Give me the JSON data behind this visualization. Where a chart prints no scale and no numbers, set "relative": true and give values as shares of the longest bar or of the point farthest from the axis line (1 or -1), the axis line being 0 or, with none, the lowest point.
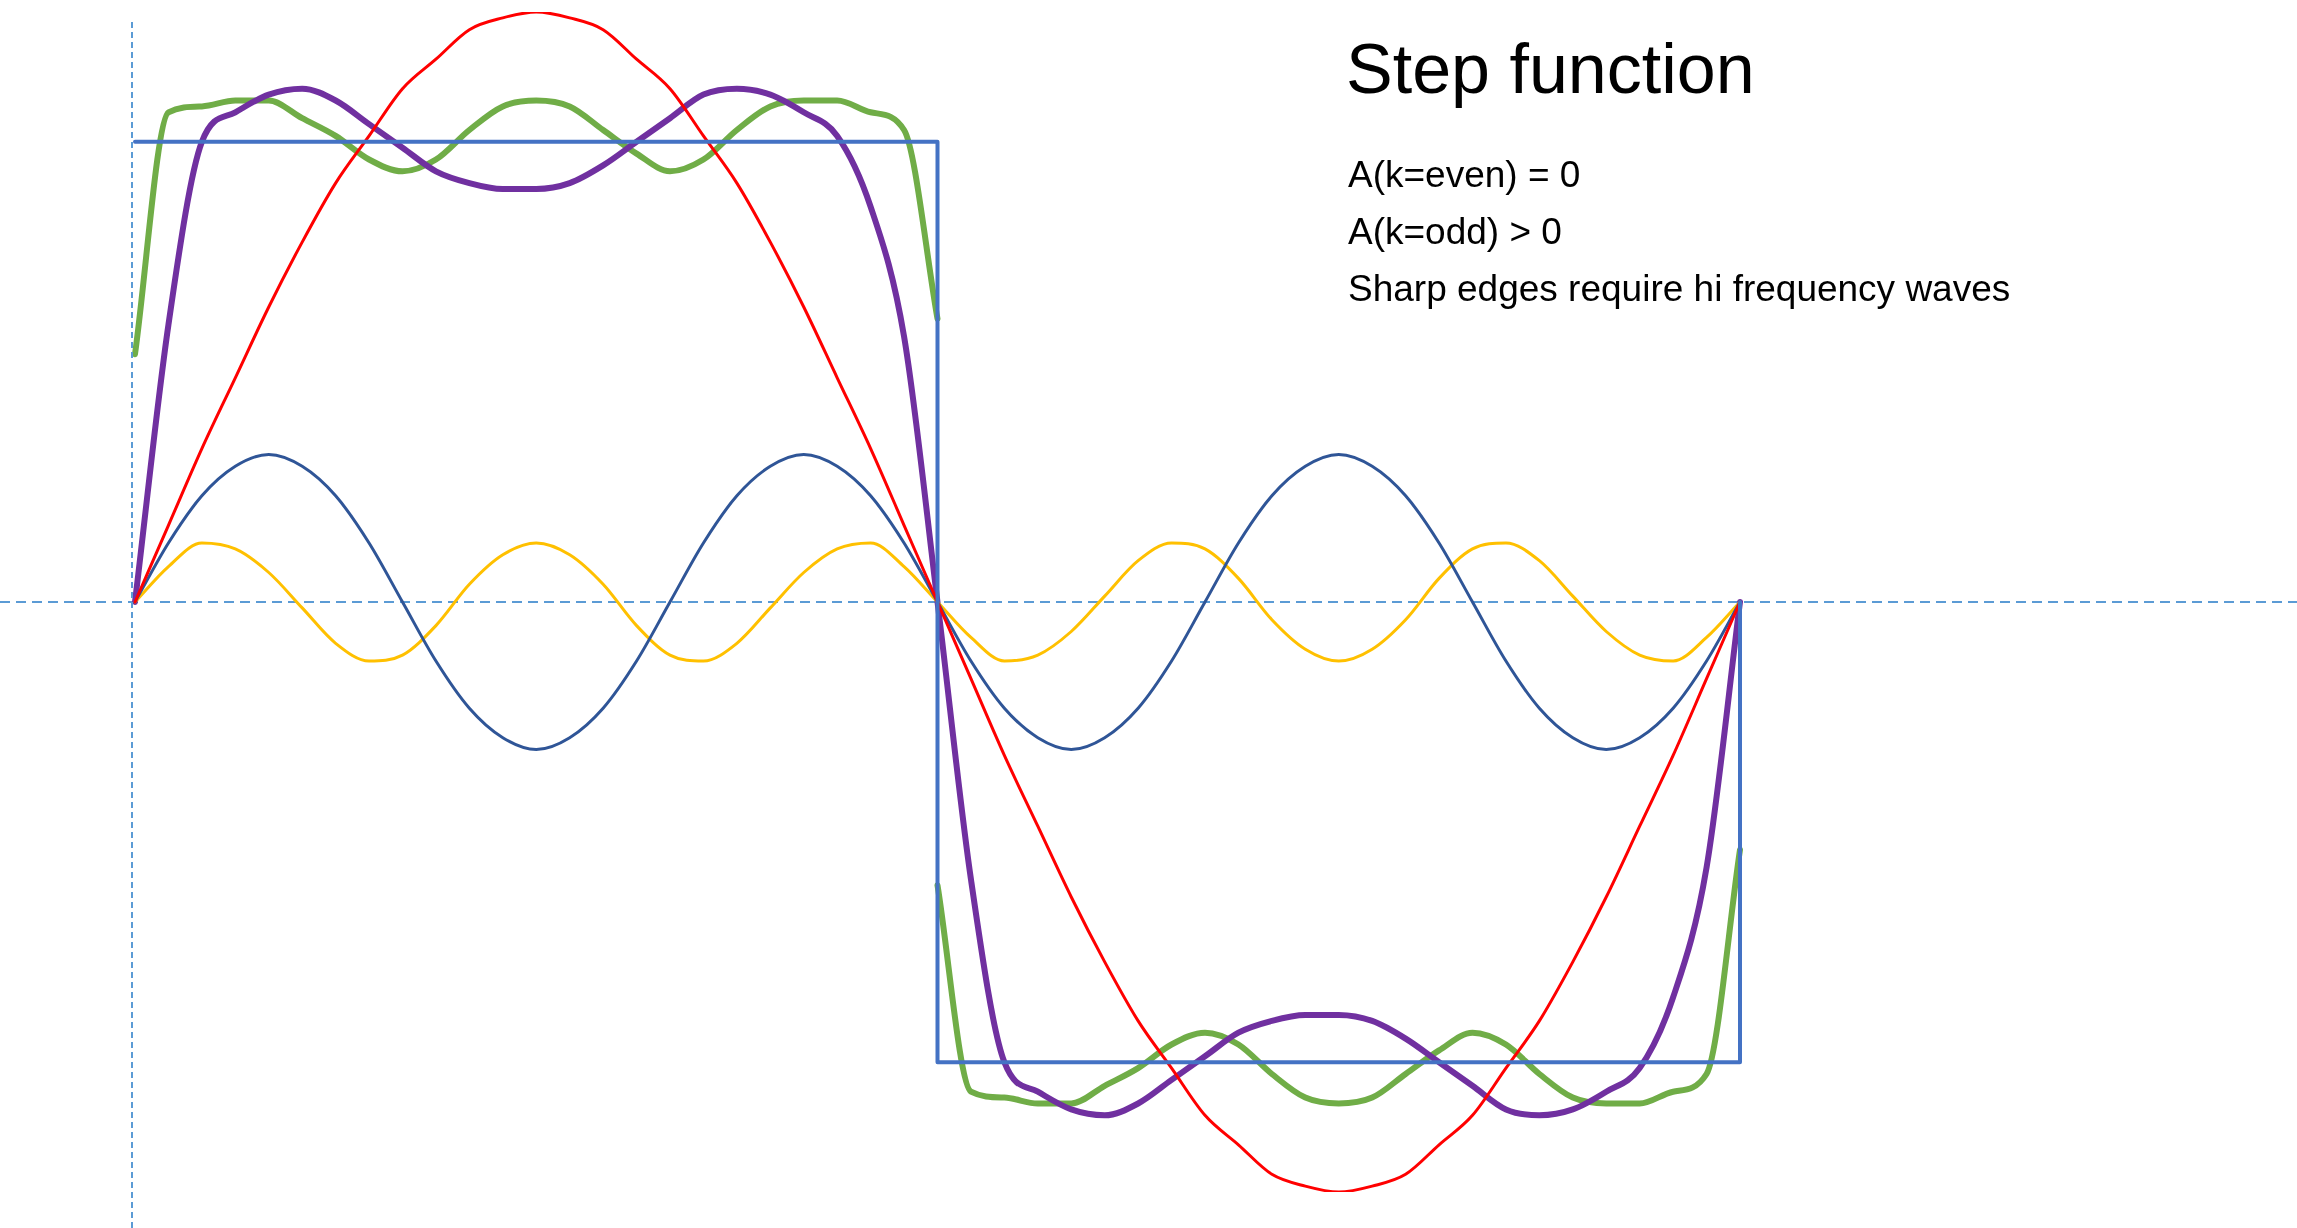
{
  "chart_data": {
    "type": "line",
    "title": "Step function",
    "annotations": [
      "A(k=even) = 0",
      "A(k=odd) > 0",
      "Sharp edges require hi frequency waves"
    ],
    "categories": [
      null,
      null,
      null,
      null,
      null,
      null,
      null,
      null,
      null,
      null,
      null,
      null,
      null,
      null,
      null,
      null,
      null,
      null,
      null,
      null,
      null,
      null,
      null,
      null,
      null,
      null,
      null,
      null,
      null,
      null,
      null,
      null,
      null,
      null,
      null,
      null,
      null,
      null,
      null,
      null,
      null,
      null,
      null,
      null,
      null,
      null,
      null,
      null,
      null
    ],
    "relative": true,
    "legend": false,
    "marker": "none",
    "ref_lines": [
      {
        "axis": "y",
        "value": 0,
        "color": "#5b9bd5",
        "line_style": "dashed"
      }
    ],
    "series": [
      {
        "type": "step",
        "color": "#4472c4",
        "values": [
          0.78,
          0.78,
          0.78,
          0.78,
          0.78,
          0.78,
          0.78,
          0.78,
          0.78,
          0.78,
          0.78,
          0.78,
          0.78,
          0.78,
          0.78,
          0.78,
          0.78,
          0.78,
          0.78,
          0.78,
          0.78,
          0.78,
          0.78,
          0.78,
          -0.78,
          -0.78,
          -0.78,
          -0.78,
          -0.78,
          -0.78,
          -0.78,
          -0.78,
          -0.78,
          -0.78,
          -0.78,
          -0.78,
          -0.78,
          -0.78,
          -0.78,
          -0.78,
          -0.78,
          -0.78,
          -0.78,
          -0.78,
          -0.78,
          -0.78,
          -0.78,
          -0.78,
          0
        ]
      },
      {
        "color": "#ff0000",
        "values": [
          0,
          0.13,
          0.26,
          0.38,
          0.5,
          0.61,
          0.71,
          0.79,
          0.87,
          0.92,
          0.97,
          0.99,
          1,
          0.99,
          0.97,
          0.92,
          0.87,
          0.79,
          0.71,
          0.61,
          0.5,
          0.38,
          0.26,
          0.13,
          0,
          -0.13,
          -0.26,
          -0.38,
          -0.5,
          -0.61,
          -0.71,
          -0.79,
          -0.87,
          -0.92,
          -0.97,
          -0.99,
          -1,
          -0.99,
          -0.97,
          -0.92,
          -0.87,
          -0.79,
          -0.71,
          -0.61,
          -0.5,
          -0.38,
          -0.26,
          -0.13,
          0
        ]
      },
      {
        "color": "#2f5597",
        "values": [
          0,
          0.1,
          0.18,
          0.23,
          0.25,
          0.23,
          0.18,
          0.1,
          0,
          -0.1,
          -0.18,
          -0.23,
          -0.25,
          -0.23,
          -0.18,
          -0.1,
          0,
          0.1,
          0.18,
          0.23,
          0.25,
          0.23,
          0.18,
          0.1,
          0,
          -0.1,
          -0.18,
          -0.23,
          -0.25,
          -0.23,
          -0.18,
          -0.1,
          0,
          0.1,
          0.18,
          0.23,
          0.25,
          0.23,
          0.18,
          0.1,
          0,
          -0.1,
          -0.18,
          -0.23,
          -0.25,
          -0.23,
          -0.18,
          -0.1,
          0
        ]
      },
      {
        "color": "#ffc000",
        "values": [
          0,
          0.06,
          0.1,
          0.09,
          0.05,
          -0.01,
          -0.07,
          -0.1,
          -0.09,
          -0.04,
          0.03,
          0.08,
          0.1,
          0.08,
          0.03,
          -0.04,
          -0.09,
          -0.1,
          -0.07,
          -0.01,
          0.05,
          0.09,
          0.1,
          0.06,
          0,
          -0.06,
          -0.1,
          -0.09,
          -0.05,
          0.01,
          0.07,
          0.1,
          0.09,
          0.04,
          -0.03,
          -0.08,
          -0.1,
          -0.08,
          -0.03,
          0.04,
          0.09,
          0.1,
          0.07,
          0.01,
          -0.05,
          -0.09,
          -0.1,
          -0.06,
          0
        ]
      },
      {
        "color": "#7030a0",
        "values": [
          0,
          0.47,
          0.78,
          0.83,
          0.86,
          0.87,
          0.85,
          0.81,
          0.77,
          0.73,
          0.71,
          0.7,
          0.7,
          0.71,
          0.74,
          0.78,
          0.82,
          0.86,
          0.87,
          0.86,
          0.83,
          0.79,
          0.67,
          0.45,
          0,
          -0.47,
          -0.78,
          -0.83,
          -0.86,
          -0.87,
          -0.85,
          -0.81,
          -0.77,
          -0.73,
          -0.71,
          -0.7,
          -0.7,
          -0.71,
          -0.74,
          -0.78,
          -0.82,
          -0.86,
          -0.87,
          -0.86,
          -0.83,
          -0.79,
          -0.67,
          -0.45,
          0
        ]
      },
      {
        "color": "#70ad47",
        "values": [
          0.42,
          0.83,
          0.84,
          0.85,
          0.85,
          0.82,
          0.79,
          0.75,
          0.73,
          0.75,
          0.8,
          0.84,
          0.85,
          0.84,
          0.8,
          0.76,
          0.73,
          0.75,
          0.8,
          0.84,
          0.85,
          0.85,
          0.83,
          0.8,
          0.48,
          null,
          null,
          null,
          null,
          null,
          null,
          null,
          null,
          null,
          null,
          null,
          null,
          null,
          null,
          null,
          null,
          null,
          null,
          null,
          null,
          null,
          null,
          null,
          null
        ]
      },
      {
        "color": "#70ad47",
        "values": [
          null,
          null,
          null,
          null,
          null,
          null,
          null,
          null,
          null,
          null,
          null,
          null,
          null,
          null,
          null,
          null,
          null,
          null,
          null,
          null,
          null,
          null,
          null,
          null,
          -0.48,
          -0.83,
          -0.84,
          -0.85,
          -0.85,
          -0.82,
          -0.79,
          -0.75,
          -0.73,
          -0.75,
          -0.8,
          -0.84,
          -0.85,
          -0.84,
          -0.8,
          -0.76,
          -0.73,
          -0.75,
          -0.8,
          -0.84,
          -0.85,
          -0.85,
          -0.83,
          -0.8,
          -0.42
        ]
      }
    ]
  }
}
